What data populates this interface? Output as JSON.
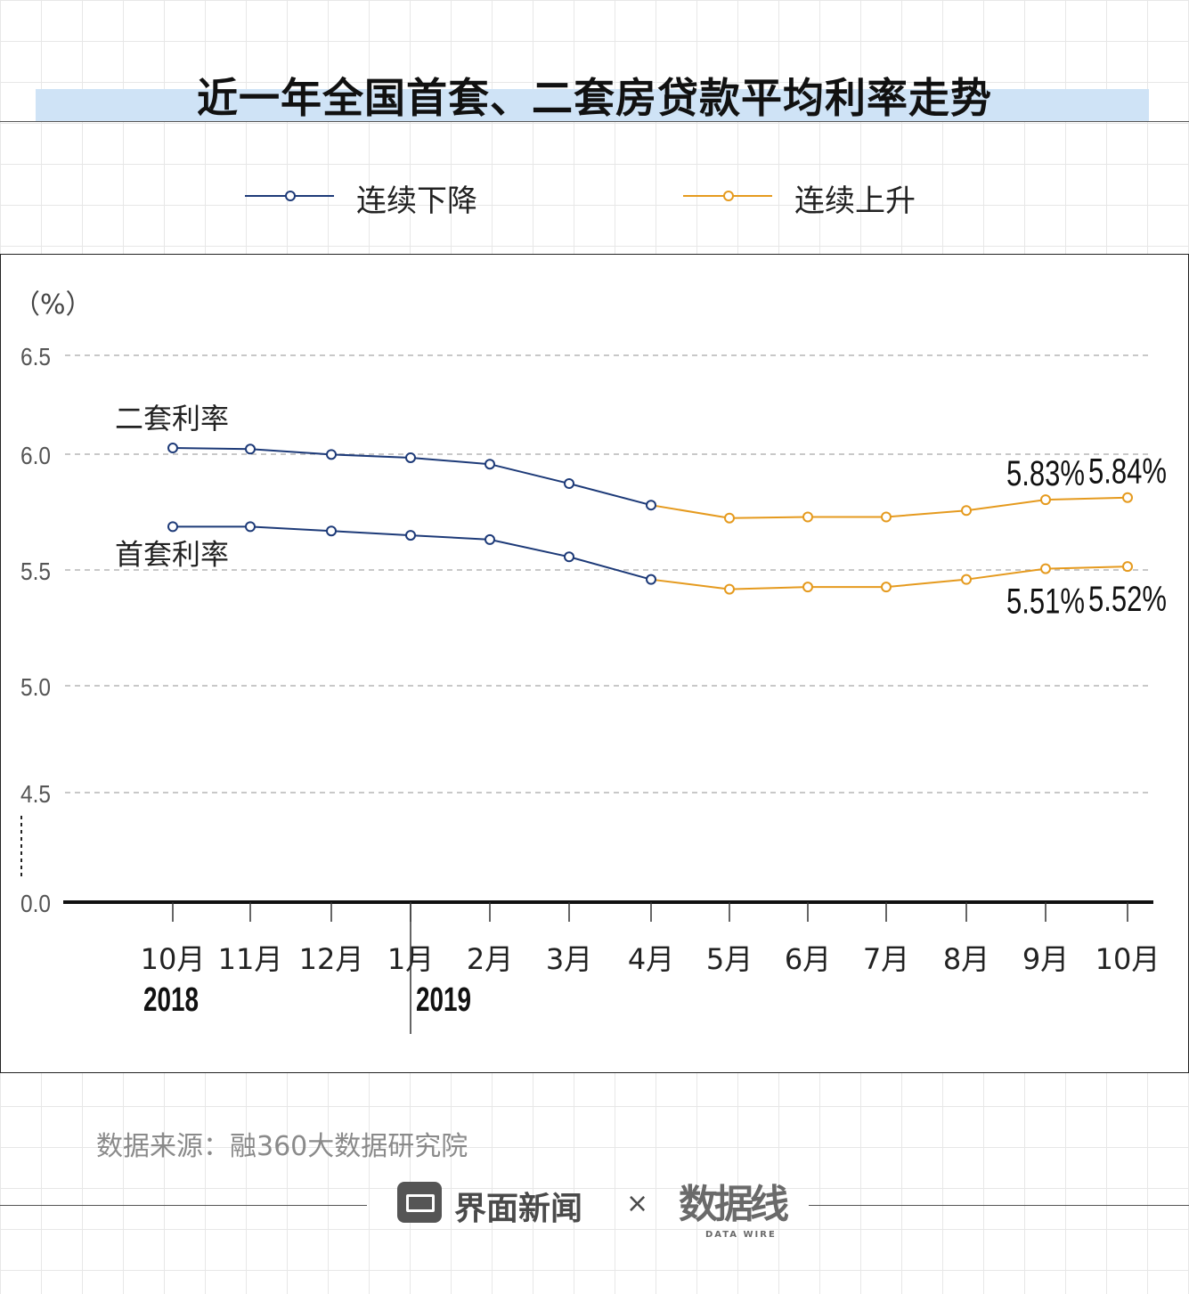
{
  "title": "近一年全国首套、二套房贷款平均利率走势",
  "legend": [
    {
      "label": "连续下降",
      "color": "#1d3a78"
    },
    {
      "label": "连续上升",
      "color": "#e59a1e"
    }
  ],
  "source": "数据来源：融360大数据研究院",
  "footer": {
    "brand": "界面新闻",
    "separator": "×",
    "partner": "数据线",
    "partner_sub": "DATA WIRE"
  },
  "chart_data": {
    "type": "line",
    "ylabel": "（%）",
    "yticks": [
      "6.5",
      "6.0",
      "5.5",
      "5.0",
      "4.5",
      "0.0"
    ],
    "axis_break": true,
    "categories": [
      "10月",
      "11月",
      "12月",
      "1月",
      "2月",
      "3月",
      "4月",
      "5月",
      "6月",
      "7月",
      "8月",
      "9月",
      "10月"
    ],
    "year_labels": [
      {
        "label": "2018",
        "at_category": 0
      },
      {
        "label": "2019",
        "at_category": 3
      }
    ],
    "series": [
      {
        "name": "二套利率",
        "values": [
          6.07,
          6.065,
          6.04,
          6.025,
          5.995,
          5.905,
          5.805,
          5.745,
          5.75,
          5.75,
          5.78,
          5.83,
          5.84
        ],
        "falling_until_index": 6,
        "value_labels": [
          {
            "index": 11,
            "text": "5.83%"
          },
          {
            "index": 12,
            "text": "5.84%"
          }
        ]
      },
      {
        "name": "首套利率",
        "values": [
          5.705,
          5.705,
          5.685,
          5.665,
          5.645,
          5.565,
          5.46,
          5.415,
          5.425,
          5.425,
          5.46,
          5.51,
          5.52
        ],
        "falling_until_index": 6,
        "value_labels": [
          {
            "index": 11,
            "text": "5.51%"
          },
          {
            "index": 12,
            "text": "5.52%"
          }
        ]
      }
    ],
    "colors": {
      "falling": "#1d3a78",
      "rising": "#e59a1e"
    },
    "grid": true
  }
}
